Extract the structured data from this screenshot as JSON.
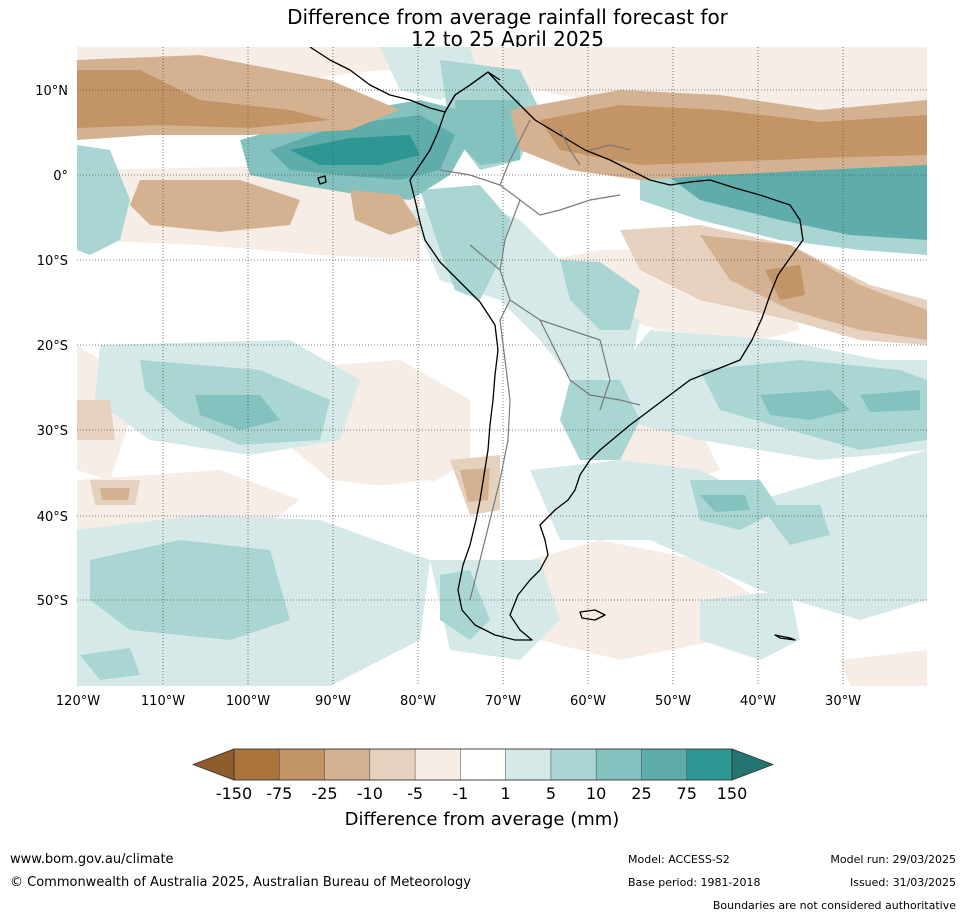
{
  "title": {
    "line1": "Difference from average rainfall forecast for",
    "line2": "12 to 25 April 2025"
  },
  "map": {
    "lat_labels": [
      "10°N",
      "0°",
      "10°S",
      "20°S",
      "30°S",
      "40°S",
      "50°S"
    ],
    "lon_labels": [
      "120°W",
      "110°W",
      "100°W",
      "90°W",
      "80°W",
      "70°W",
      "60°W",
      "50°W",
      "40°W",
      "30°W"
    ]
  },
  "colorbar": {
    "label": "Difference from average (mm)",
    "ticks": [
      "-150",
      "-75",
      "-25",
      "-10",
      "-5",
      "-1",
      "1",
      "5",
      "10",
      "25",
      "75",
      "150"
    ],
    "colors": [
      "#ab733c",
      "#c39466",
      "#d4b190",
      "#e6d1be",
      "#f5ede6",
      "#ffffff",
      "#d4e9e8",
      "#a9d5d3",
      "#84c2bf",
      "#5eadaa",
      "#2f9793"
    ],
    "low_extend_color": "#8f5c2c",
    "high_extend_color": "#237572"
  },
  "footer": {
    "url": "www.bom.gov.au/climate",
    "copyright": "© Commonwealth of Australia 2025, Australian Bureau of Meteorology",
    "model": "Model: ACCESS-S2",
    "base_period": "Base period: 1981-2018",
    "model_run": "Model run: 29/03/2025",
    "issued": "Issued: 31/03/2025",
    "boundaries_note": "Boundaries are not considered authoritative"
  }
}
